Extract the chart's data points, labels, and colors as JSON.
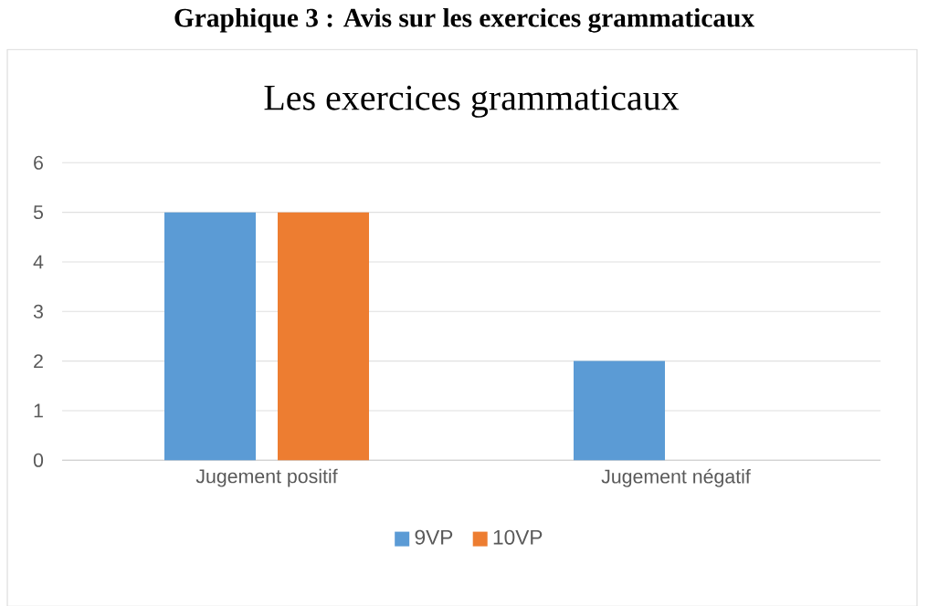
{
  "chart_data": {
    "type": "bar",
    "title": "Graphique 3 : Avis sur les exercices grammaticaux",
    "subtitle": "Les exercices grammaticaux",
    "categories": [
      "Jugement positif",
      "Jugement négatif"
    ],
    "series": [
      {
        "name": "9VP",
        "color": "#5b9bd5",
        "values": [
          5,
          2
        ]
      },
      {
        "name": "10VP",
        "color": "#ed7d31",
        "values": [
          5,
          0
        ]
      }
    ],
    "ylim": [
      0,
      6
    ],
    "yticks": [
      0,
      1,
      2,
      3,
      4,
      5,
      6
    ],
    "grid": "y",
    "legend": "bottom"
  }
}
